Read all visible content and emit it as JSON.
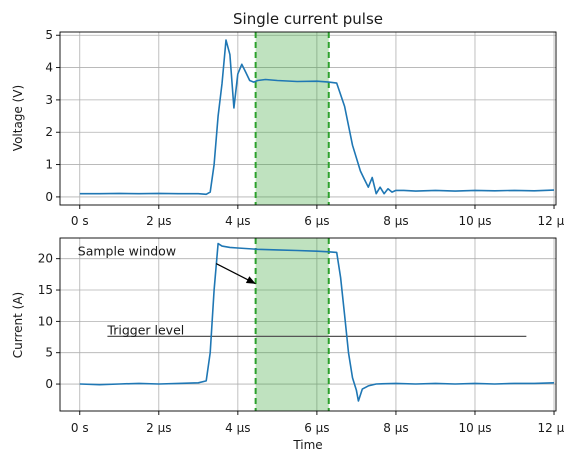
{
  "chart_data": [
    {
      "type": "line",
      "title": "Single current pulse",
      "xlabel": "",
      "ylabel": "Voltage (V)",
      "xlim": [
        -0.5,
        12.05
      ],
      "ylim": [
        -0.25,
        5.1
      ],
      "xticks": [
        0,
        2,
        4,
        6,
        8,
        10,
        12
      ],
      "xtick_labels": [
        "0 s",
        "2 µs",
        "4 µs",
        "6 µs",
        "8 µs",
        "10 µs",
        "12 µs"
      ],
      "yticks": [
        0,
        1,
        2,
        3,
        4,
        5
      ],
      "ytick_labels": [
        "0",
        "1",
        "2",
        "3",
        "4",
        "5"
      ],
      "grid": true,
      "window": {
        "start": 4.45,
        "end": 6.3
      },
      "series": [
        {
          "color": "#1f77b4",
          "x": [
            0.0,
            0.5,
            1.0,
            1.5,
            2.0,
            2.5,
            3.0,
            3.2,
            3.3,
            3.4,
            3.5,
            3.6,
            3.7,
            3.8,
            3.9,
            4.0,
            4.1,
            4.2,
            4.3,
            4.4,
            4.5,
            4.7,
            5.0,
            5.5,
            6.0,
            6.3,
            6.5,
            6.7,
            6.9,
            7.1,
            7.2,
            7.3,
            7.4,
            7.5,
            7.6,
            7.7,
            7.8,
            7.9,
            8.0,
            8.2,
            8.5,
            9.0,
            9.5,
            10.0,
            10.5,
            11.0,
            11.5,
            12.0
          ],
          "values": [
            0.1,
            0.1,
            0.11,
            0.1,
            0.11,
            0.1,
            0.1,
            0.08,
            0.15,
            1.0,
            2.5,
            3.5,
            4.85,
            4.4,
            2.75,
            3.8,
            4.1,
            3.85,
            3.6,
            3.55,
            3.6,
            3.63,
            3.6,
            3.57,
            3.58,
            3.55,
            3.52,
            2.8,
            1.6,
            0.8,
            0.55,
            0.3,
            0.6,
            0.1,
            0.3,
            0.1,
            0.25,
            0.15,
            0.2,
            0.2,
            0.18,
            0.2,
            0.18,
            0.2,
            0.19,
            0.2,
            0.19,
            0.21
          ]
        }
      ]
    },
    {
      "type": "line",
      "title": "",
      "xlabel": "Time",
      "ylabel": "Current (A)",
      "xlim": [
        -0.5,
        12.05
      ],
      "ylim": [
        -4.3,
        23.3
      ],
      "xticks": [
        0,
        2,
        4,
        6,
        8,
        10,
        12
      ],
      "xtick_labels": [
        "0 s",
        "2 µs",
        "4 µs",
        "6 µs",
        "8 µs",
        "10 µs",
        "12 µs"
      ],
      "yticks": [
        0,
        5,
        10,
        15,
        20
      ],
      "ytick_labels": [
        "0",
        "5",
        "10",
        "15",
        "20"
      ],
      "grid": true,
      "window": {
        "start": 4.45,
        "end": 6.3
      },
      "trigger_level": 7.6,
      "trigger_range": [
        0.7,
        11.3
      ],
      "annotations": [
        {
          "text": "Sample window",
          "text_at": [
            -0.05,
            20.5
          ],
          "arrow_to": [
            4.45,
            16.0
          ]
        },
        {
          "text": "Trigger level",
          "text_at": [
            0.7,
            7.9
          ]
        }
      ],
      "series": [
        {
          "color": "#1f77b4",
          "x": [
            0.0,
            0.5,
            1.0,
            1.5,
            2.0,
            2.5,
            3.0,
            3.2,
            3.3,
            3.4,
            3.5,
            3.6,
            3.8,
            4.0,
            4.5,
            5.0,
            5.5,
            6.0,
            6.3,
            6.5,
            6.6,
            6.7,
            6.8,
            6.9,
            7.0,
            7.05,
            7.15,
            7.3,
            7.5,
            8.0,
            8.5,
            9.0,
            9.5,
            10.0,
            10.5,
            11.0,
            11.5,
            12.0
          ],
          "values": [
            0.0,
            -0.1,
            0.0,
            0.1,
            0.0,
            0.1,
            0.2,
            0.5,
            5.0,
            15.0,
            22.4,
            22.0,
            21.8,
            21.7,
            21.5,
            21.4,
            21.3,
            21.2,
            21.1,
            21.0,
            17.0,
            11.0,
            5.0,
            1.0,
            -1.0,
            -2.7,
            -0.8,
            -0.3,
            0.0,
            0.1,
            0.0,
            0.1,
            0.0,
            0.1,
            0.0,
            0.1,
            0.1,
            0.2
          ]
        }
      ]
    }
  ]
}
